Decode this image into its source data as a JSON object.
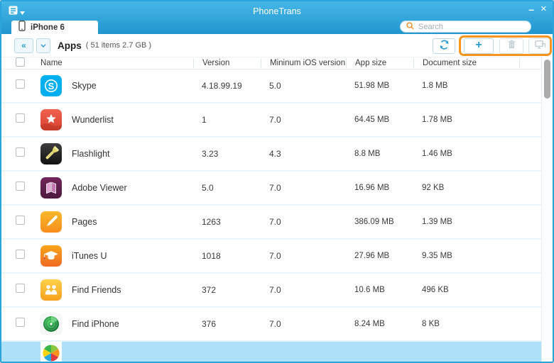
{
  "window": {
    "title": "PhoneTrans",
    "minimize_label": "–",
    "close_label": "✕"
  },
  "tab": {
    "label": "iPhone 6"
  },
  "search": {
    "placeholder": "Search"
  },
  "toolbar": {
    "collapse_label": "«",
    "section_title": "Apps",
    "section_summary": "( 51 items 2.7 GB )",
    "add_label": "+"
  },
  "table": {
    "headers": {
      "name": "Name",
      "version": "Version",
      "min_ios": "Mininum iOS version",
      "app_size": "App size",
      "doc_size": "Document size"
    },
    "rows": [
      {
        "icon": "skype",
        "name": "Skype",
        "version": "4.18.99.19",
        "min_ios": "5.0",
        "app_size": "51.98 MB",
        "doc_size": "1.8 MB"
      },
      {
        "icon": "wunderlist",
        "name": "Wunderlist",
        "version": "1",
        "min_ios": "7.0",
        "app_size": "64.45 MB",
        "doc_size": "1.78 MB"
      },
      {
        "icon": "flashlight",
        "name": "Flashlight",
        "version": "3.23",
        "min_ios": "4.3",
        "app_size": "8.8 MB",
        "doc_size": "1.46 MB"
      },
      {
        "icon": "adobe-viewer",
        "name": "Adobe Viewer",
        "version": "5.0",
        "min_ios": "7.0",
        "app_size": "16.96 MB",
        "doc_size": "92 KB"
      },
      {
        "icon": "pages",
        "name": "Pages",
        "version": "1263",
        "min_ios": "7.0",
        "app_size": "386.09 MB",
        "doc_size": "1.39 MB"
      },
      {
        "icon": "itunes-u",
        "name": "iTunes U",
        "version": "1018",
        "min_ios": "7.0",
        "app_size": "27.96 MB",
        "doc_size": "9.35 MB"
      },
      {
        "icon": "find-friends",
        "name": "Find Friends",
        "version": "372",
        "min_ios": "7.0",
        "app_size": "10.6 MB",
        "doc_size": "496 KB"
      },
      {
        "icon": "find-iphone",
        "name": "Find iPhone",
        "version": "376",
        "min_ios": "7.0",
        "app_size": "8.24 MB",
        "doc_size": "8 KB"
      }
    ]
  },
  "partial_row": {
    "icon": "rainbow"
  },
  "colors": {
    "accent_blue": "#2FA9DF",
    "annotation_orange": "#F6941D",
    "selected_row": "#AEE0F7"
  }
}
